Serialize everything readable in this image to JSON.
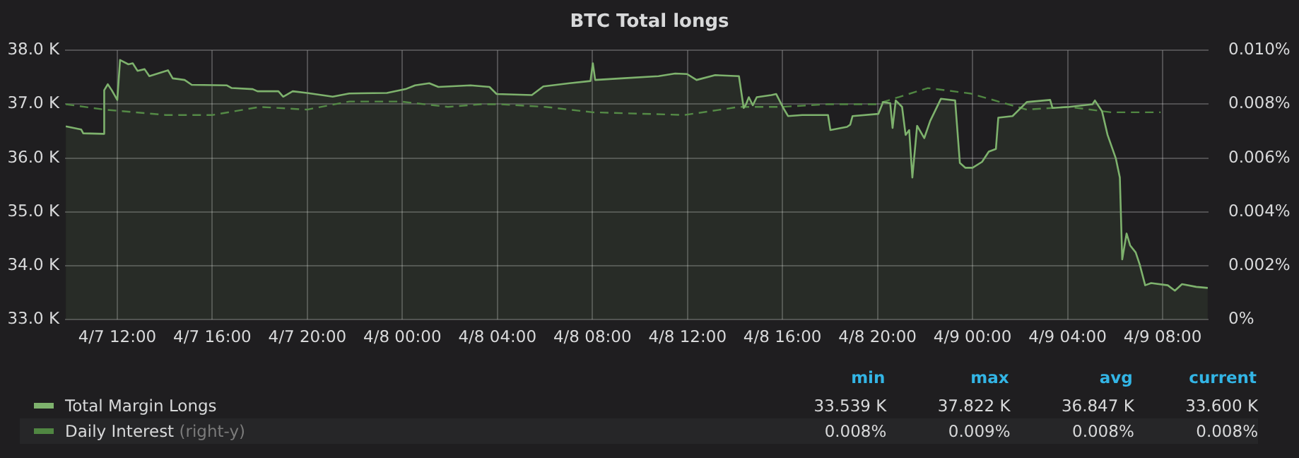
{
  "chart_data": {
    "type": "area",
    "title": "BTC Total longs",
    "legend": "bottom",
    "grid": true,
    "marker": "none",
    "x": [
      "--04-07T09:50",
      "--04-07T10:29",
      "--04-07T10:34",
      "--04-07T11:25",
      "--04-07T11:27",
      "--04-07T11:36",
      "--04-07T11:46",
      "--04-07T12:00",
      "--04-07T12:07",
      "--04-07T12:28",
      "--04-07T12:39",
      "--04-07T12:51",
      "--04-07T13:09",
      "--04-07T13:21",
      "--04-07T14:08",
      "--04-07T14:20",
      "--04-07T14:50",
      "--04-07T15:08",
      "--04-07T16:37",
      "--04-07T16:49",
      "--04-07T17:42",
      "--04-07T17:54",
      "--04-07T18:47",
      "--04-07T18:59",
      "--04-07T19:23",
      "--04-07T19:59",
      "--04-07T21:04",
      "--04-07T21:46",
      "--04-07T23:21",
      "--04-08T00:08",
      "--04-08T00:32",
      "--04-08T01:08",
      "--04-08T01:31",
      "--04-08T02:52",
      "--04-08T03:40",
      "--04-08T03:58",
      "--04-08T05:27",
      "--04-08T05:56",
      "--04-08T07:02",
      "--04-08T07:55",
      "--04-08T08:01",
      "--04-08T08:07",
      "--04-08T09:13",
      "--04-08T10:47",
      "--04-08T11:29",
      "--04-08T11:59",
      "--04-08T12:23",
      "--04-08T13:10",
      "--04-08T14:10",
      "--04-08T14:22",
      "--04-08T14:28",
      "--04-08T14:35",
      "--04-08T14:45",
      "--04-08T14:55",
      "--04-08T15:32",
      "--04-08T15:44",
      "--04-08T16:02",
      "--04-08T16:14",
      "--04-08T16:50",
      "--04-08T17:55",
      "--04-08T18:01",
      "--04-08T18:43",
      "--04-08T18:51",
      "--04-08T18:57",
      "--04-08T20:02",
      "--04-08T20:14",
      "--04-08T20:32",
      "--04-08T20:38",
      "--04-08T20:46",
      "--04-08T21:02",
      "--04-08T21:11",
      "--04-08T21:20",
      "--04-08T21:28",
      "--04-08T21:40",
      "--04-08T21:58",
      "--04-08T22:13",
      "--04-08T22:40",
      "--04-08T23:16",
      "--04-08T23:28",
      "--04-08T23:42",
      "--04-09T00:00",
      "--04-09T00:24",
      "--04-09T00:41",
      "--04-09T00:59",
      "--04-09T01:05",
      "--04-09T01:41",
      "--04-09T02:17",
      "--04-09T03:16",
      "--04-09T03:22",
      "--04-09T04:04",
      "--04-09T05:03",
      "--04-09T05:09",
      "--04-09T05:27",
      "--04-09T05:41",
      "--04-09T06:02",
      "--04-09T06:12",
      "--04-09T06:18",
      "--04-09T06:29",
      "--04-09T06:38",
      "--04-09T06:52",
      "--04-09T07:02",
      "--04-09T07:16",
      "--04-09T07:31",
      "--04-09T08:13",
      "--04-09T08:31",
      "--04-09T08:49",
      "--04-09T09:25",
      "--04-09T09:54"
    ],
    "series": [
      {
        "name": "Total Margin Longs",
        "type": "area",
        "color": "#7eb26d",
        "values": [
          36.59,
          36.53,
          36.46,
          36.45,
          37.26,
          37.37,
          37.26,
          37.08,
          37.82,
          37.74,
          37.76,
          37.62,
          37.65,
          37.52,
          37.63,
          37.48,
          37.45,
          37.36,
          37.35,
          37.3,
          37.28,
          37.24,
          37.24,
          37.14,
          37.24,
          37.21,
          37.14,
          37.2,
          37.21,
          37.28,
          37.35,
          37.39,
          37.32,
          37.35,
          37.32,
          37.19,
          37.17,
          37.33,
          37.39,
          37.43,
          37.76,
          37.45,
          37.48,
          37.52,
          37.57,
          37.56,
          37.45,
          37.54,
          37.52,
          36.93,
          37.0,
          37.13,
          36.98,
          37.13,
          37.17,
          37.19,
          36.93,
          36.78,
          36.8,
          36.8,
          36.52,
          36.58,
          36.62,
          36.78,
          36.82,
          37.04,
          37.02,
          36.56,
          37.07,
          36.95,
          36.43,
          36.52,
          35.64,
          36.6,
          36.37,
          36.69,
          37.1,
          37.07,
          35.91,
          35.82,
          35.82,
          35.93,
          36.12,
          36.17,
          36.75,
          36.78,
          37.04,
          37.08,
          36.93,
          36.95,
          37.0,
          37.07,
          36.87,
          36.43,
          35.99,
          35.64,
          34.12,
          34.6,
          34.38,
          34.25,
          34.03,
          33.64,
          33.68,
          33.64,
          33.54,
          33.66,
          33.61,
          33.59
        ]
      },
      {
        "name": "Daily Interest",
        "type": "line",
        "axis": "y2",
        "line_style": "dashed",
        "color": "#508642",
        "x": [
          "--04-07T09:50",
          "--04-07T11:28",
          "--04-07T14:02",
          "--04-07T16:01",
          "--04-07T18:00",
          "--04-07T19:59",
          "--04-07T21:46",
          "--04-07T23:56",
          "--04-08T01:55",
          "--04-08T03:19",
          "--04-08T04:04",
          "--04-08T06:02",
          "--04-08T08:01",
          "--04-08T11:53",
          "--04-08T14:10",
          "--04-08T15:56",
          "--04-08T17:55",
          "--04-08T19:56",
          "--04-08T22:07",
          "--04-08T23:54",
          "--04-09T02:17",
          "--04-09T04:04",
          "--04-09T05:50",
          "--04-09T07:55"
        ],
        "values": [
          0.008,
          0.0078,
          0.0076,
          0.0076,
          0.0079,
          0.0078,
          0.0081,
          0.0081,
          0.0079,
          0.008,
          0.008,
          0.0079,
          0.0077,
          0.0076,
          0.0079,
          0.0079,
          0.008,
          0.008,
          0.0086,
          0.0084,
          0.0078,
          0.0079,
          0.0077,
          0.0077
        ]
      }
    ],
    "xlim": [
      "--04-07T09:48",
      "--04-09T09:56"
    ],
    "xticks": [
      {
        "value": "--04-07T12:00",
        "label": "4/7 12:00"
      },
      {
        "value": "--04-07T16:00",
        "label": "4/7 16:00"
      },
      {
        "value": "--04-07T20:00",
        "label": "4/7 20:00"
      },
      {
        "value": "--04-08T00:00",
        "label": "4/8 00:00"
      },
      {
        "value": "--04-08T04:00",
        "label": "4/8 04:00"
      },
      {
        "value": "--04-08T08:00",
        "label": "4/8 08:00"
      },
      {
        "value": "--04-08T12:00",
        "label": "4/8 12:00"
      },
      {
        "value": "--04-08T16:00",
        "label": "4/8 16:00"
      },
      {
        "value": "--04-08T20:00",
        "label": "4/8 20:00"
      },
      {
        "value": "--04-09T00:00",
        "label": "4/9 00:00"
      },
      {
        "value": "--04-09T04:00",
        "label": "4/9 04:00"
      },
      {
        "value": "--04-09T08:00",
        "label": "4/9 08:00"
      }
    ],
    "ylim": [
      33,
      38
    ],
    "yticks": [
      {
        "value": 33,
        "label": "33.0 K"
      },
      {
        "value": 34,
        "label": "34.0 K"
      },
      {
        "value": 35,
        "label": "35.0 K"
      },
      {
        "value": 36,
        "label": "36.0 K"
      },
      {
        "value": 37,
        "label": "37.0 K"
      },
      {
        "value": 38,
        "label": "38.0 K"
      }
    ],
    "y2lim": [
      0,
      0.01
    ],
    "y2ticks": [
      {
        "value": 0,
        "label": "0%"
      },
      {
        "value": 0.002,
        "label": "0.002%"
      },
      {
        "value": 0.004,
        "label": "0.004%"
      },
      {
        "value": 0.006,
        "label": "0.006%"
      },
      {
        "value": 0.008,
        "label": "0.008%"
      },
      {
        "value": 0.01,
        "label": "0.010%"
      }
    ],
    "annotations": [
      "min",
      "max",
      "avg",
      "current",
      "33.539 K",
      "37.822 K",
      "36.847 K",
      "33.600 K",
      "(right-y)",
      "0.008%",
      "0.009%",
      "0.008%",
      "0.008%"
    ]
  }
}
